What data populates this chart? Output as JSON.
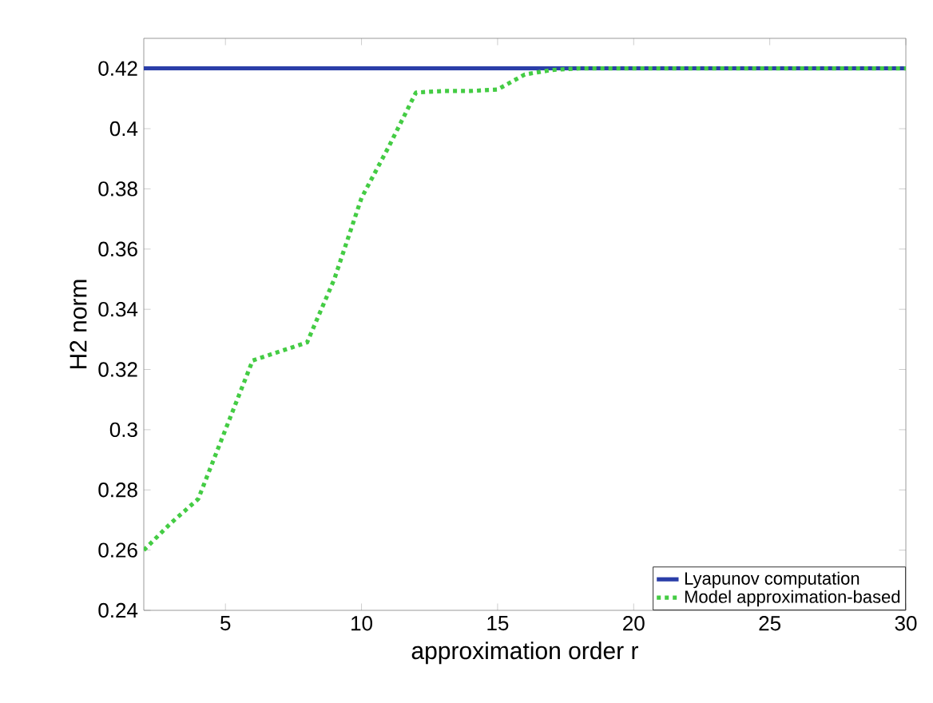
{
  "chart_data": {
    "type": "line",
    "xlabel": "approximation order r",
    "ylabel": "H2 norm",
    "xlim": [
      2,
      30
    ],
    "ylim": [
      0.24,
      0.43
    ],
    "xticks": [
      5,
      10,
      15,
      20,
      25,
      30
    ],
    "yticks": [
      0.24,
      0.26,
      0.28,
      0.3,
      0.32,
      0.34,
      0.36,
      0.38,
      0.4,
      0.42
    ],
    "legend": "bottom right",
    "series": [
      {
        "name": "Lyapunov computation",
        "color": "#2a3ea8",
        "line_style": "solid",
        "x": [
          2,
          30
        ],
        "values": [
          0.42,
          0.42
        ]
      },
      {
        "name": "Model approximation-based",
        "color": "#44cc44",
        "line_style": "dotted",
        "x": [
          2,
          3,
          4,
          5,
          6,
          7,
          8,
          9,
          10,
          11,
          12,
          13,
          14,
          15,
          16,
          17,
          18,
          20,
          22,
          24,
          26,
          28,
          30
        ],
        "values": [
          0.26,
          0.269,
          0.277,
          0.3,
          0.323,
          0.326,
          0.329,
          0.35,
          0.377,
          0.394,
          0.412,
          0.4125,
          0.4125,
          0.413,
          0.418,
          0.4195,
          0.42,
          0.42,
          0.42,
          0.42,
          0.42,
          0.42,
          0.42
        ]
      }
    ]
  }
}
